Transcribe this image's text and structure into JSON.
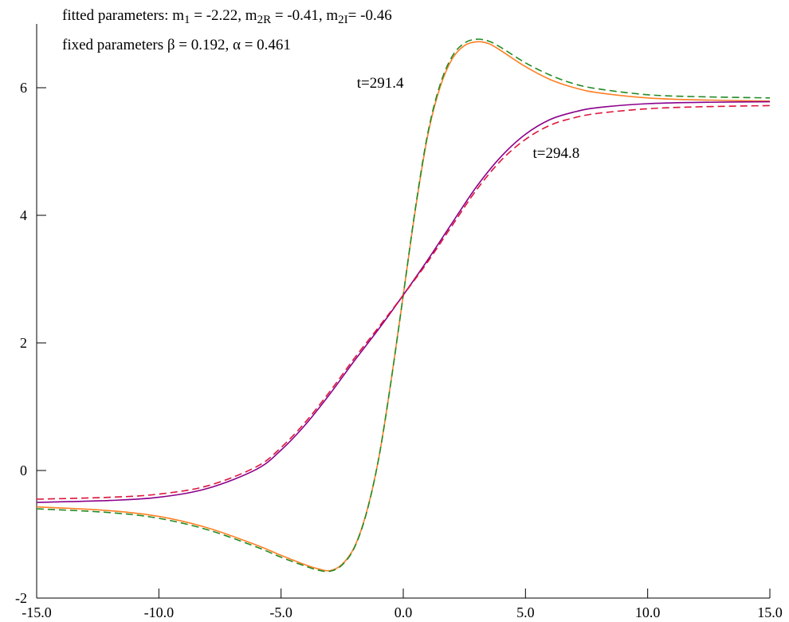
{
  "header": {
    "line1": [
      {
        "t": "fitted parameters: m"
      },
      {
        "t": "1",
        "sub": true
      },
      {
        "t": " = -2.22, m"
      },
      {
        "t": "2R",
        "sub": true
      },
      {
        "t": " = -0.41, m"
      },
      {
        "t": "2I",
        "sub": true
      },
      {
        "t": "= -0.46"
      }
    ],
    "line2": [
      {
        "t": "fixed parameters β = 0.192, α = 0.461"
      }
    ]
  },
  "chart_data": {
    "type": "line",
    "title": "",
    "xlabel": "",
    "ylabel": "",
    "xlim": [
      -15,
      15
    ],
    "ylim": [
      -2,
      7
    ],
    "x_ticks": [
      -15,
      -10,
      -5,
      0,
      5,
      10,
      15
    ],
    "x_tick_labels": [
      "-15.0",
      "-10.0",
      "-5.0",
      "0.0",
      "5.0",
      "10.0",
      "15.0"
    ],
    "y_ticks": [
      -2,
      0,
      2,
      4,
      6
    ],
    "y_tick_labels": [
      "-2",
      "0",
      "2",
      "4",
      "6"
    ],
    "grid": false,
    "legend": "none",
    "annotations": [
      {
        "text": "t=291.4",
        "x": -1.9,
        "y": 6.0
      },
      {
        "text": "t=294.8",
        "x": 5.3,
        "y": 4.9
      }
    ],
    "series": [
      {
        "color": "#ff7f24",
        "dash": false,
        "x": [
          -15,
          -12,
          -10,
          -8,
          -6,
          -5,
          -4,
          -3.5,
          -3,
          -2.5,
          -2,
          -1.5,
          -1,
          -0.5,
          0,
          0.5,
          1,
          1.5,
          2,
          2.5,
          3,
          3.5,
          4,
          5,
          6,
          7,
          8,
          10,
          12,
          15
        ],
        "y": [
          -0.57,
          -0.63,
          -0.72,
          -0.9,
          -1.17,
          -1.33,
          -1.48,
          -1.54,
          -1.57,
          -1.47,
          -1.2,
          -0.65,
          0.2,
          1.4,
          2.75,
          4.1,
          5.25,
          6.0,
          6.45,
          6.66,
          6.72,
          6.69,
          6.58,
          6.33,
          6.13,
          6.0,
          5.92,
          5.84,
          5.81,
          5.79
        ]
      },
      {
        "color": "#228b22",
        "dash": true,
        "x": [
          -15,
          -12,
          -10,
          -8,
          -6,
          -5,
          -4,
          -3.5,
          -3,
          -2.5,
          -2,
          -1.5,
          -1,
          -0.5,
          0,
          0.5,
          1,
          1.5,
          2,
          2.5,
          3,
          3.5,
          4,
          5,
          6,
          7,
          8,
          10,
          12,
          15
        ],
        "y": [
          -0.6,
          -0.66,
          -0.75,
          -0.93,
          -1.2,
          -1.36,
          -1.5,
          -1.56,
          -1.58,
          -1.48,
          -1.21,
          -0.66,
          0.2,
          1.4,
          2.75,
          4.12,
          5.28,
          6.04,
          6.49,
          6.7,
          6.76,
          6.73,
          6.63,
          6.39,
          6.2,
          6.06,
          5.98,
          5.89,
          5.86,
          5.84
        ]
      },
      {
        "color": "#8b008b",
        "dash": false,
        "x": [
          -15,
          -12,
          -10,
          -8,
          -6,
          -5,
          -4,
          -3,
          -2,
          -1,
          0,
          1,
          2,
          3,
          4,
          5,
          6,
          7,
          8,
          10,
          12,
          15
        ],
        "y": [
          -0.5,
          -0.47,
          -0.42,
          -0.28,
          0.02,
          0.32,
          0.72,
          1.2,
          1.72,
          2.22,
          2.75,
          3.3,
          3.88,
          4.45,
          4.92,
          5.27,
          5.5,
          5.62,
          5.69,
          5.75,
          5.77,
          5.78
        ]
      },
      {
        "color": "#dc143c",
        "dash": true,
        "x": [
          -15,
          -12,
          -10,
          -8,
          -6,
          -5,
          -4,
          -3,
          -2,
          -1,
          0,
          1,
          2,
          3,
          4,
          5,
          6,
          7,
          8,
          10,
          12,
          15
        ],
        "y": [
          -0.45,
          -0.42,
          -0.37,
          -0.24,
          0.06,
          0.36,
          0.76,
          1.24,
          1.76,
          2.25,
          2.75,
          3.27,
          3.84,
          4.4,
          4.86,
          5.19,
          5.41,
          5.53,
          5.6,
          5.67,
          5.7,
          5.72
        ]
      }
    ]
  }
}
